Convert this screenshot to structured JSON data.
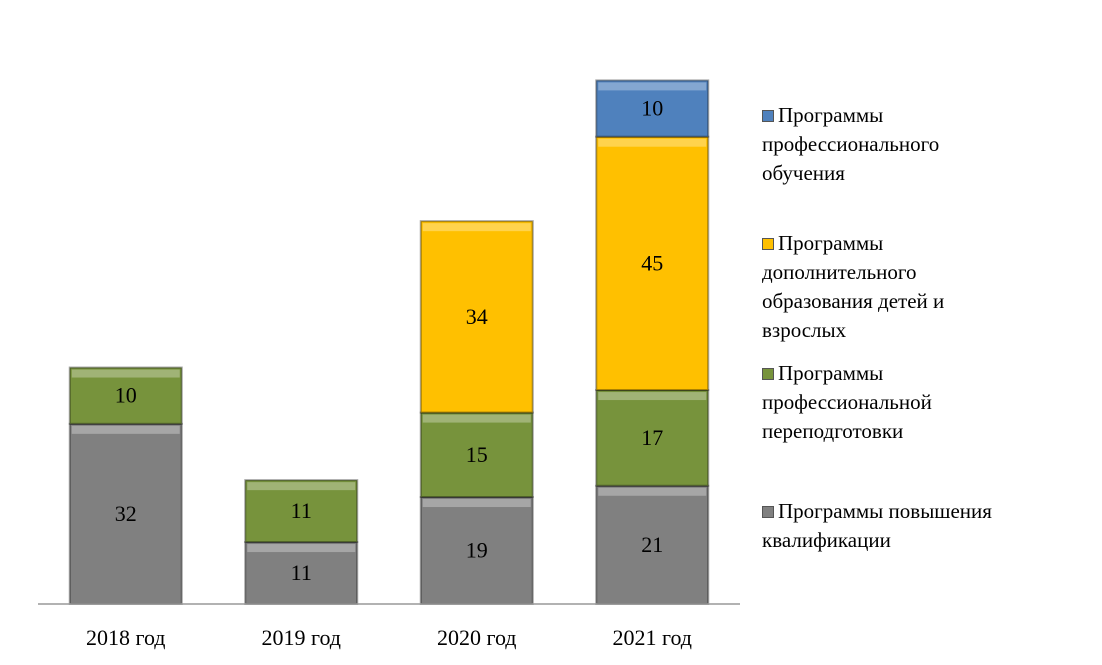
{
  "chart_data": {
    "type": "stacked_bar",
    "categories": [
      "2018 год",
      "2019 год",
      "2020 год",
      "2021 год"
    ],
    "series": [
      {
        "name": "Программы повышения квалификации",
        "color": "#808080",
        "values": [
          32,
          11,
          19,
          21
        ]
      },
      {
        "name": "Программы профессиональной переподготовки",
        "color": "#77933c",
        "values": [
          10,
          11,
          15,
          17
        ]
      },
      {
        "name": "Программы дополнительного образования детей и взрослых",
        "color": "#ffc000",
        "values": [
          null,
          null,
          34,
          45
        ]
      },
      {
        "name": "Программы профессионального обучения",
        "color": "#4f81bd",
        "values": [
          null,
          null,
          null,
          10
        ]
      }
    ],
    "ylim": [
      0,
      100
    ]
  }
}
